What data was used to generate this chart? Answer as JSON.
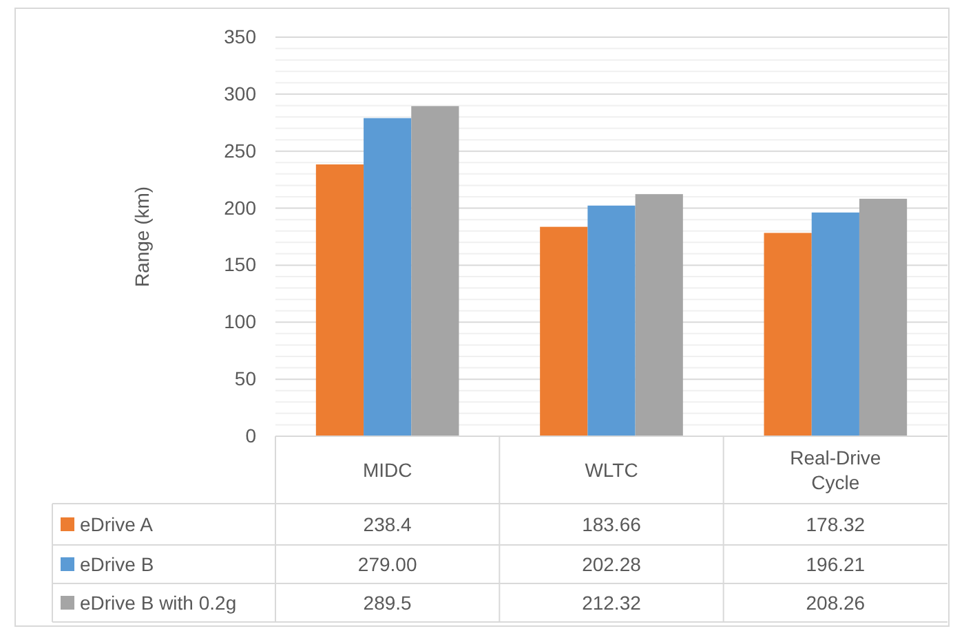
{
  "chart_data": {
    "type": "bar",
    "ylabel": "Range (km)",
    "categories": [
      "MIDC",
      "WLTC",
      "Real-Drive Cycle"
    ],
    "series": [
      {
        "name": "eDrive A",
        "color": "#ed7d31",
        "values": [
          238.4,
          183.66,
          178.32
        ],
        "value_labels": [
          "238.4",
          "183.66",
          "178.32"
        ]
      },
      {
        "name": "eDrive B",
        "color": "#5b9bd5",
        "values": [
          279.0,
          202.28,
          196.21
        ],
        "value_labels": [
          "279.00",
          "202.28",
          "196.21"
        ]
      },
      {
        "name": "eDrive B with 0.2g",
        "color": "#a5a5a5",
        "values": [
          289.5,
          212.32,
          208.26
        ],
        "value_labels": [
          "289.5",
          "212.32",
          "208.26"
        ]
      }
    ],
    "ylim": [
      0,
      350
    ],
    "yticks": [
      0,
      {
        "value": 10,
        "label": null
      },
      {
        "value": 20,
        "label": null
      },
      {
        "value": 30,
        "label": null
      },
      {
        "value": 40,
        "label": null
      },
      50,
      {
        "value": 60,
        "label": null
      },
      {
        "value": 70,
        "label": null
      },
      {
        "value": 80,
        "label": null
      },
      {
        "value": 90,
        "label": null
      },
      100,
      {
        "value": 110,
        "label": null
      },
      {
        "value": 120,
        "label": null
      },
      {
        "value": 130,
        "label": null
      },
      {
        "value": 140,
        "label": null
      },
      150,
      {
        "value": 160,
        "label": null
      },
      {
        "value": 170,
        "label": null
      },
      {
        "value": 180,
        "label": null
      },
      {
        "value": 190,
        "label": null
      },
      200,
      {
        "value": 210,
        "label": null
      },
      {
        "value": 220,
        "label": null
      },
      {
        "value": 230,
        "label": null
      },
      {
        "value": 240,
        "label": null
      },
      250,
      {
        "value": 260,
        "label": null
      },
      {
        "value": 270,
        "label": null
      },
      {
        "value": 280,
        "label": null
      },
      {
        "value": 290,
        "label": null
      },
      300,
      {
        "value": 310,
        "label": null
      },
      {
        "value": 320,
        "label": null
      },
      {
        "value": 330,
        "label": null
      },
      {
        "value": 340,
        "label": null
      },
      350
    ],
    "grid": "y",
    "legend": "bottom left"
  }
}
